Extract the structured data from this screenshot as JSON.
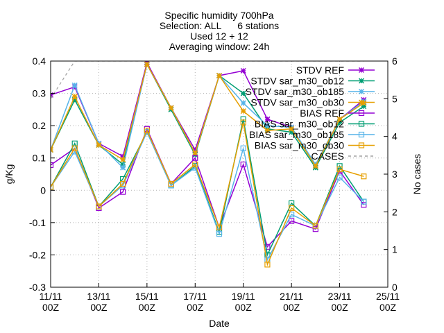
{
  "chart_data": {
    "type": "line",
    "title": "Specific humidity 700hPa",
    "subtitle_lines": [
      "Selection: ALL      6 stations",
      "Used 12 + 12",
      "Averaging window: 24h"
    ],
    "xlabel": "Date",
    "ylabel": "g/Kg",
    "y2label": "No cases",
    "ylim": [
      -0.3,
      0.4
    ],
    "y2lim": [
      0,
      6
    ],
    "yticks": [
      "-0.3",
      "-0.2",
      "-0.1",
      "0",
      "0.1",
      "0.2",
      "0.3",
      "0.4"
    ],
    "y2ticks": [
      "0",
      "1",
      "2",
      "3",
      "4",
      "5",
      "6"
    ],
    "xlim": [
      0,
      14
    ],
    "xticks": [
      {
        "x": 0,
        "l1": "11/11",
        "l2": "00Z"
      },
      {
        "x": 2,
        "l1": "13/11",
        "l2": "00Z"
      },
      {
        "x": 4,
        "l1": "15/11",
        "l2": "00Z"
      },
      {
        "x": 6,
        "l1": "17/11",
        "l2": "00Z"
      },
      {
        "x": 8,
        "l1": "19/11",
        "l2": "00Z"
      },
      {
        "x": 10,
        "l1": "21/11",
        "l2": "00Z"
      },
      {
        "x": 12,
        "l1": "23/11",
        "l2": "00Z"
      },
      {
        "x": 14,
        "l1": "25/11",
        "l2": "00Z"
      }
    ],
    "grid": true,
    "legend_position": "top-right",
    "x": [
      0,
      1,
      2,
      3,
      4,
      5,
      6,
      7,
      8,
      9,
      10,
      11,
      12,
      13
    ],
    "series": [
      {
        "name": "STDV REF",
        "color": "#9400d3",
        "marker": "x",
        "axis": "y1",
        "values": [
          0.295,
          0.32,
          0.145,
          0.105,
          0.395,
          0.255,
          0.125,
          0.355,
          0.37,
          0.22,
          0.195,
          0.075,
          0.22,
          0.28
        ]
      },
      {
        "name": "STDV sar_m30_ob12",
        "color": "#009e73",
        "marker": "x",
        "axis": "y1",
        "values": [
          0.125,
          0.28,
          0.14,
          0.08,
          0.39,
          0.25,
          0.11,
          0.355,
          0.3,
          0.19,
          0.18,
          0.07,
          0.21,
          0.26
        ]
      },
      {
        "name": "STDV sar_m30_ob185",
        "color": "#56b4e9",
        "marker": "x",
        "axis": "y1",
        "values": [
          0.125,
          0.325,
          0.145,
          0.07,
          0.39,
          0.255,
          0.115,
          0.355,
          0.27,
          0.2,
          0.195,
          0.08,
          0.22,
          0.275
        ]
      },
      {
        "name": "STDV sar_m30_ob30",
        "color": "#e69f00",
        "marker": "x",
        "axis": "y1",
        "values": [
          0.125,
          0.29,
          0.14,
          0.095,
          0.39,
          0.255,
          0.115,
          0.355,
          0.245,
          0.185,
          0.19,
          0.075,
          0.22,
          0.27
        ]
      },
      {
        "name": "BIAS REF",
        "color": "#9400d3",
        "marker": "s",
        "axis": "y1",
        "values": [
          0.078,
          0.13,
          -0.055,
          -0.005,
          0.19,
          0.02,
          0.1,
          -0.115,
          0.08,
          -0.175,
          -0.095,
          -0.12,
          0.06,
          -0.045
        ]
      },
      {
        "name": "BIAS sar_m30_ob12",
        "color": "#009e73",
        "marker": "s",
        "axis": "y1",
        "values": [
          0.01,
          0.145,
          -0.05,
          0.035,
          0.18,
          0.015,
          0.075,
          -0.13,
          0.22,
          -0.2,
          -0.04,
          -0.11,
          0.075,
          -0.035
        ]
      },
      {
        "name": "BIAS sar_m30_ob185",
        "color": "#56b4e9",
        "marker": "s",
        "axis": "y1",
        "values": [
          0.01,
          0.12,
          -0.05,
          0.015,
          0.18,
          0.015,
          0.07,
          -0.135,
          0.13,
          -0.215,
          -0.075,
          -0.11,
          0.04,
          -0.035
        ]
      },
      {
        "name": "BIAS sar_m30_ob30",
        "color": "#e69f00",
        "marker": "s",
        "axis": "y1",
        "values": [
          0.01,
          0.13,
          -0.05,
          0.02,
          0.185,
          0.02,
          0.08,
          -0.115,
          0.21,
          -0.23,
          -0.055,
          -0.11,
          0.065,
          0.043
        ]
      },
      {
        "name": "CASES",
        "color": "#a0a0a0",
        "marker": "none",
        "dashed": true,
        "axis": "y2",
        "values": [
          5,
          6,
          6,
          6,
          6,
          6,
          6,
          6,
          6,
          6,
          6,
          6,
          6,
          6
        ]
      }
    ]
  }
}
